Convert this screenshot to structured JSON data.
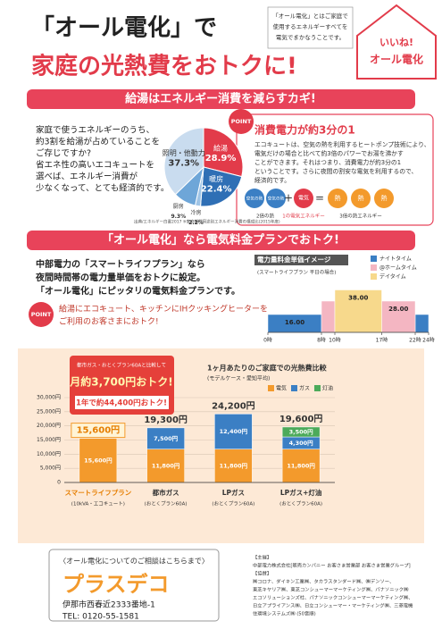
{
  "header": {
    "title_line1": "「オール電化」で",
    "title_line2": "家庭の光熱費をおトクに!",
    "note": [
      "「オール電化」とはご家庭で",
      "使用するエネルギーすべてを",
      "電気でまかなうことです。"
    ],
    "badge_line1": "いいね!",
    "badge_line2": "オール電化"
  },
  "section1": {
    "banner": "給湯はエネルギー消費を減らすカギ!",
    "body": [
      "家庭で使うエネルギーのうち、",
      "約3割を給湯が占めていることを",
      "ご存じですか?",
      "省エネ性の高いエコキュートを",
      "選べば、エネルギー消費が",
      "少なくなって、とても経済的です。"
    ],
    "pie": {
      "segments": [
        {
          "label": "給湯",
          "value": 28.9,
          "value_label": "28.9%",
          "color": "#e23b4a"
        },
        {
          "label": "暖房",
          "value": 22.4,
          "value_label": "22.4%",
          "color": "#2f6fb5"
        },
        {
          "label": "冷房",
          "value": 2.2,
          "value_label": "2.2%",
          "color": "#9fc4e6"
        },
        {
          "label": "厨房",
          "value": 9.3,
          "value_label": "9.3%",
          "color": "#6ea6d8"
        },
        {
          "label": "照明・他動力",
          "value": 37.3,
          "value_label": "37.3%",
          "color": "#c9dcef"
        }
      ],
      "source": "出典/エネルギー白書2017 ※家庭部門用途別エネルギー消費の構成比(2015年度)"
    },
    "point": {
      "badge": "POINT",
      "heading": "消費電力が約3分の1",
      "body": [
        "エコキュートは、空気の熱を利用するヒートポンプ技術により、",
        "電気だけの場合と比べて約3倍のパワーでお湯を沸かす",
        "ことができます。それはつまり、消費電力が約3分の1",
        "ということです。さらに夜間の割安な電気を利用するので、",
        "経済的です。"
      ],
      "air": [
        "空気の熱",
        "空気の熱"
      ],
      "plus": "+",
      "electric": "電気",
      "equals": "=",
      "heat": [
        "熱",
        "熱",
        "熱"
      ],
      "captions": [
        "2倍の熱",
        "1の電気エネルギー",
        "3倍の熱エネルギー"
      ]
    }
  },
  "section2": {
    "banner": "「オール電化」なら電気料金プランでおトク!",
    "body": [
      "中部電力の「スマートライフプラン」なら",
      "夜間時間帯の電力量単価をおトクに設定。",
      "「オール電化」にピッタリの電気料金プランです。"
    ],
    "point": {
      "badge": "POINT",
      "body": [
        "給湯にエコキュート、キッチンにIHクッキングヒーターを",
        "ご利用のお客さまにおトク!"
      ]
    },
    "rate_chart": {
      "title": "電力量料金単価イメージ",
      "subtitle": "(スマートライフプラン 平日の場合)",
      "ylim": [
        0,
        40
      ],
      "xticks": [
        {
          "value": 0,
          "label": "0時"
        },
        {
          "value": 8,
          "label": "8時"
        },
        {
          "value": 10,
          "label": "10時"
        },
        {
          "value": 17,
          "label": "17時"
        },
        {
          "value": 22,
          "label": "22時"
        },
        {
          "value": 24,
          "label": "24時"
        }
      ],
      "rates": [
        {
          "name": "ナイトタイム",
          "color": "#3b7fc4",
          "value": 16,
          "value_label": "16.00",
          "spans": [
            [
              0,
              8
            ],
            [
              22,
              24
            ]
          ]
        },
        {
          "name": "@ホームタイム",
          "color": "#f4b6c2",
          "value": 28,
          "value_label": "28.00",
          "spans": [
            [
              8,
              10
            ],
            [
              17,
              22
            ]
          ]
        },
        {
          "name": "デイタイム",
          "color": "#f7d98c",
          "value": 38,
          "value_label": "38.00",
          "spans": [
            [
              10,
              17
            ]
          ]
        }
      ]
    }
  },
  "savings": {
    "callout": {
      "line1": "都市ガス・おとくプラン60Aと比較して",
      "line2": "月約3,700円おトク!",
      "line3": "1年で約44,400円おトク!"
    },
    "chart": {
      "title": "1ヶ月あたりのご家庭での光熱費比較",
      "subtitle": "(モデルケース・愛知平均)",
      "ylim": [
        0,
        30000
      ],
      "yticks": [
        0,
        {
          "value": 5000,
          "label": "5,000円"
        },
        {
          "value": 10000,
          "label": "10,000円"
        },
        {
          "value": 15000,
          "label": "15,000円"
        },
        {
          "value": 20000,
          "label": "20,000円"
        },
        {
          "value": 25000,
          "label": "25,000円"
        },
        {
          "value": 30000,
          "label": "30,000円"
        }
      ],
      "categories": [
        {
          "name": "スマートライフプラン",
          "plan": "(10kVA・エコキュート)"
        },
        {
          "name": "都市ガス",
          "plan": "(おとくプラン60A)"
        },
        {
          "name": "LPガス",
          "plan": "(おとくプラン60A)"
        },
        {
          "name": "LPガス+灯油",
          "plan": "(おとくプラン60A)"
        }
      ],
      "series": [
        {
          "name": "電気",
          "color": "#f39a2c",
          "values": [
            15600,
            11800,
            11800,
            11800
          ],
          "value_labels": [
            "15,600円",
            "11,800円",
            "11,800円",
            "11,800円"
          ]
        },
        {
          "name": "ガス",
          "color": "#3b7fc4",
          "values": [
            null,
            7500,
            12400,
            4300
          ],
          "value_labels": [
            null,
            "7,500円",
            "12,400円",
            "4,300円"
          ]
        },
        {
          "name": "灯油",
          "color": "#4caa5a",
          "values": [
            null,
            null,
            null,
            3500
          ],
          "value_labels": [
            null,
            null,
            null,
            "3,500円"
          ]
        }
      ],
      "totals": [
        15600,
        19300,
        24200,
        19600
      ],
      "total_labels": [
        "15,600円",
        "19,300円",
        "24,200円",
        "19,600円"
      ]
    }
  },
  "footer": {
    "contact": "〈オール電化についてのご相談はこちらまで〉",
    "company": "プラスデコ",
    "address": "伊那市西春近2333番地-1",
    "tel": "TEL: 0120-55-1581",
    "sponsor": [
      "【主催】",
      "中部電力株式会社[販売カンパニー お客さま営業部 お客さま営業グループ]",
      "【協賛】",
      "㈱コロナ、ダイキン工業㈱、タカラスタンダード㈱、㈱デンソー、",
      "東芝キヤリア㈱、東芝コンシューマーマーケティング㈱、パナソニック㈱",
      "エコソリューションズ社、パナソニックコンシューマーマーケティング㈱、",
      "日立アプライアンス㈱、日立コンシューマー・マーケティング㈱、三菱電機",
      "住環境システムズ㈱ (50音順)"
    ]
  }
}
